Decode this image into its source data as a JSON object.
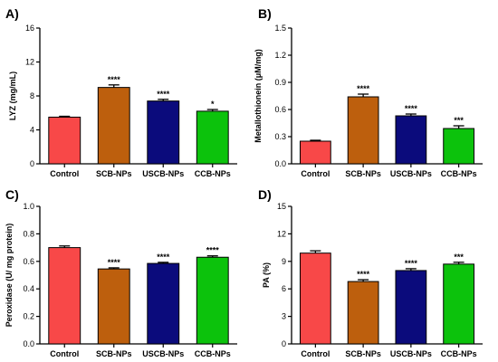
{
  "chart_data": [
    {
      "type": "bar",
      "panel": "A)",
      "ylabel": "LYZ (mg/mL)",
      "ylim": [
        0,
        16
      ],
      "yticks": [
        0,
        4,
        8,
        12,
        16
      ],
      "ytick_labels": [
        "0",
        "4",
        "8",
        "12",
        "16"
      ],
      "categories": [
        "Control",
        "SCB-NPs",
        "USCB-NPs",
        "CCB-NPs"
      ],
      "values": [
        5.5,
        9.0,
        7.4,
        6.2
      ],
      "errors": [
        0.1,
        0.3,
        0.2,
        0.2
      ],
      "significance": [
        "",
        "****",
        "****",
        "*"
      ],
      "colors": [
        "#f84848",
        "#bd5f0d",
        "#0b0b7c",
        "#0cc20c"
      ]
    },
    {
      "type": "bar",
      "panel": "B)",
      "ylabel": "Metallothionein (μM/mg)",
      "ylim": [
        0,
        1.5
      ],
      "yticks": [
        0,
        0.3,
        0.6,
        0.9,
        1.2,
        1.5
      ],
      "ytick_labels": [
        "0.0",
        "0.3",
        "0.6",
        "0.9",
        "1.2",
        "1.5"
      ],
      "categories": [
        "Control",
        "SCB-NPs",
        "USCB-NPs",
        "CCB-NPs"
      ],
      "values": [
        0.25,
        0.74,
        0.53,
        0.39
      ],
      "errors": [
        0.01,
        0.03,
        0.02,
        0.03
      ],
      "significance": [
        "",
        "****",
        "****",
        "***"
      ],
      "colors": [
        "#f84848",
        "#bd5f0d",
        "#0b0b7c",
        "#0cc20c"
      ]
    },
    {
      "type": "bar",
      "panel": "C)",
      "ylabel": "Peroxidase (U/ mg protein)",
      "ylim": [
        0,
        1.0
      ],
      "yticks": [
        0,
        0.2,
        0.4,
        0.6,
        0.8,
        1.0
      ],
      "ytick_labels": [
        "0.0",
        "0.2",
        "0.4",
        "0.6",
        "0.8",
        "1.0"
      ],
      "categories": [
        "Control",
        "SCB-NPs",
        "USCB-NPs",
        "CCB-NPs"
      ],
      "values": [
        0.7,
        0.545,
        0.585,
        0.63
      ],
      "errors": [
        0.012,
        0.008,
        0.008,
        0.01
      ],
      "significance": [
        "",
        "****",
        "****",
        "****"
      ],
      "colors": [
        "#f84848",
        "#bd5f0d",
        "#0b0b7c",
        "#0cc20c"
      ]
    },
    {
      "type": "bar",
      "panel": "D)",
      "ylabel": "PA (%)",
      "ylim": [
        0,
        15
      ],
      "yticks": [
        0,
        3,
        6,
        9,
        12,
        15
      ],
      "ytick_labels": [
        "0",
        "3",
        "6",
        "9",
        "12",
        "15"
      ],
      "categories": [
        "Control",
        "SCB-NPs",
        "USCB-NPs",
        "CCB-NPs"
      ],
      "values": [
        9.9,
        6.8,
        8.0,
        8.7
      ],
      "errors": [
        0.25,
        0.2,
        0.2,
        0.2
      ],
      "significance": [
        "",
        "****",
        "****",
        "***"
      ],
      "colors": [
        "#f84848",
        "#bd5f0d",
        "#0b0b7c",
        "#0cc20c"
      ]
    }
  ]
}
